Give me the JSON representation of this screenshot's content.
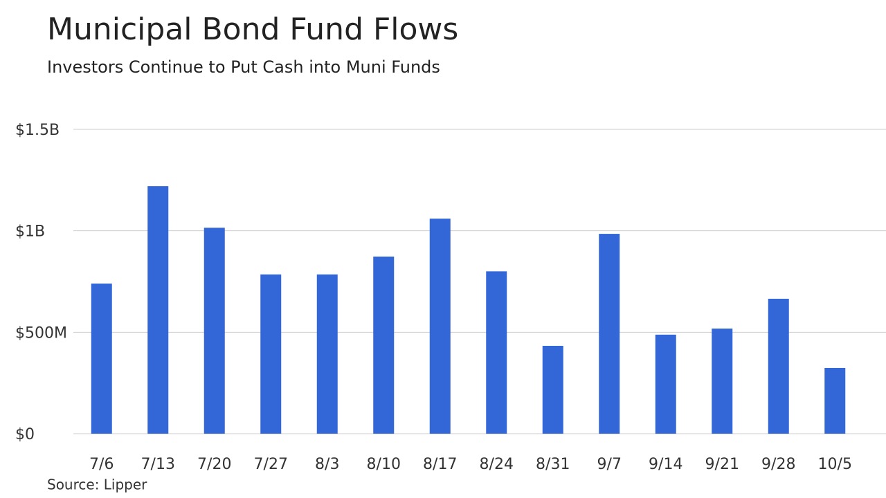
{
  "chart_data": {
    "type": "bar",
    "title": "Municipal Bond Fund Flows",
    "subtitle": "Investors Continue to Put Cash into Muni Funds",
    "source": "Source: Lipper",
    "categories": [
      "7/6",
      "7/13",
      "7/20",
      "7/27",
      "8/3",
      "8/10",
      "8/17",
      "8/24",
      "8/31",
      "9/7",
      "9/14",
      "9/21",
      "9/28",
      "10/5"
    ],
    "values": [
      740000000,
      1220000000,
      1015000000,
      785000000,
      785000000,
      873000000,
      1060000000,
      800000000,
      433000000,
      985000000,
      488000000,
      518000000,
      665000000,
      324000000
    ],
    "color": "#3366d6",
    "ylim": [
      0,
      1500000000
    ],
    "yticks": [
      {
        "value": 0,
        "label": "$0"
      },
      {
        "value": 500000000,
        "label": "$500M"
      },
      {
        "value": 1000000000,
        "label": "$1B"
      },
      {
        "value": 1500000000,
        "label": "$1.5B"
      }
    ],
    "grid": true
  }
}
